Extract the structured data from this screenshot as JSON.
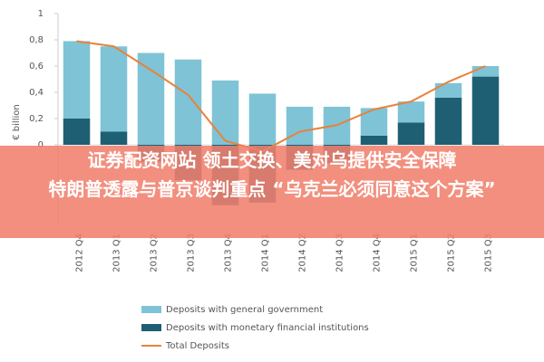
{
  "chart_data": {
    "type": "bar",
    "y_label": "€ billion",
    "categories": [
      "2012 Q4",
      "2013 Q1",
      "2013 Q2",
      "2013 Q3",
      "2013 Q4",
      "2014 Q1",
      "2014 Q2",
      "2014 Q3",
      "2014 Q4",
      "2015 Q1",
      "2015 Q2",
      "2015 Q3"
    ],
    "series": [
      {
        "name": "Deposits with general government",
        "color": "#7fc3d6",
        "values": [
          0.59,
          0.65,
          0.7,
          0.65,
          0.49,
          0.39,
          0.29,
          0.29,
          0.21,
          0.16,
          0.11,
          0.08
        ]
      },
      {
        "name": "Deposits with monetary financial institutions",
        "color": "#1f5f73",
        "values": [
          0.2,
          0.1,
          -0.13,
          -0.27,
          -0.46,
          -0.44,
          -0.19,
          -0.14,
          0.07,
          0.17,
          0.36,
          0.52
        ]
      },
      {
        "name": "Total Deposits",
        "type": "line",
        "color": "#e8823c",
        "values": [
          0.79,
          0.75,
          0.57,
          0.38,
          0.03,
          -0.05,
          0.1,
          0.15,
          0.27,
          0.33,
          0.48,
          0.6
        ]
      }
    ],
    "ylim": [
      -0.6,
      1
    ],
    "yticks": [
      {
        "value": 0,
        "label": "0"
      },
      {
        "value": 0.2,
        "label": "0,2"
      },
      {
        "value": 0.4,
        "label": "0,4"
      },
      {
        "value": 0.6,
        "label": "0,6"
      },
      {
        "value": 0.8,
        "label": "0,8"
      },
      {
        "value": 1,
        "label": "1"
      }
    ]
  },
  "banner": {
    "lines": [
      "证券配资网站   领土交换、美对乌提供安全保障",
      "特朗普透露与普京谈判重点 “乌克兰必须同意这个方案”"
    ]
  }
}
